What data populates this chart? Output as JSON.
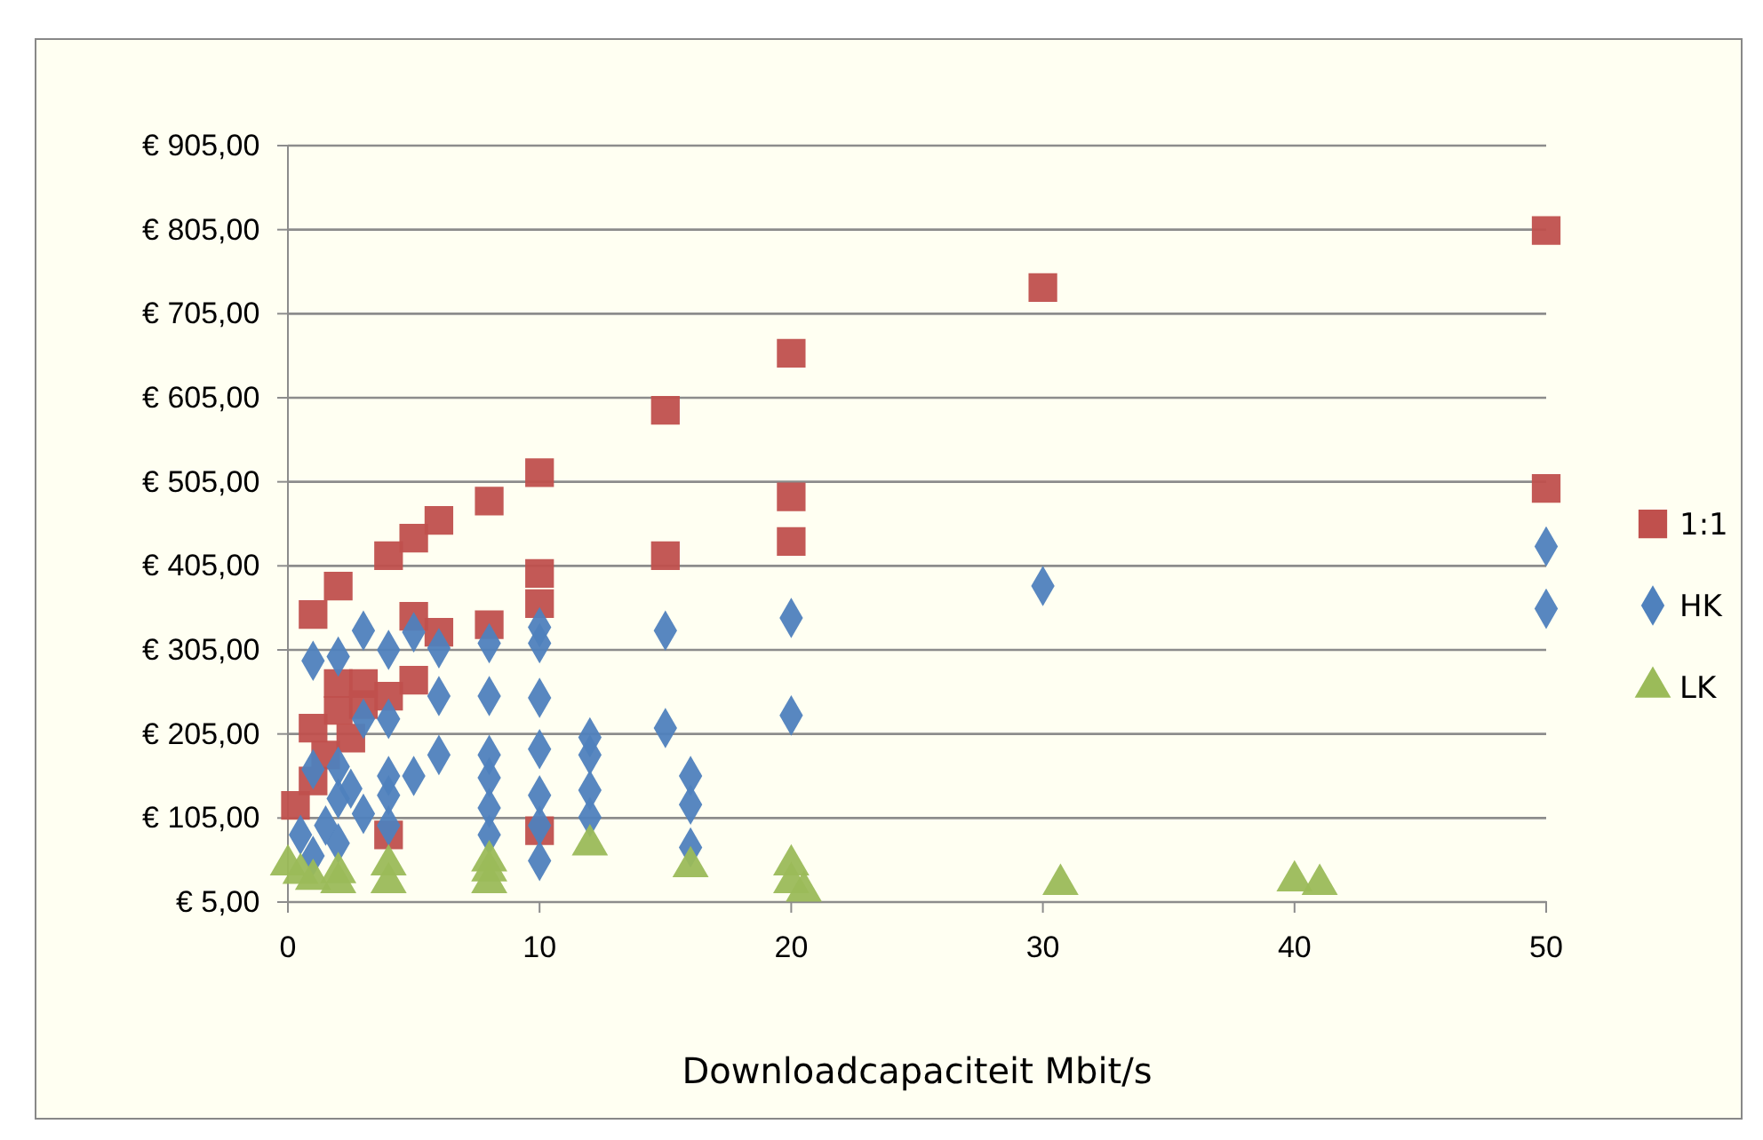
{
  "chart_data": {
    "type": "scatter",
    "xlabel": "Downloadcapaciteit Mbit/s",
    "xlim": [
      0,
      50
    ],
    "xticks": [
      0,
      10,
      20,
      30,
      40,
      50
    ],
    "ylim": [
      5,
      905
    ],
    "yticks": [
      {
        "value": 5,
        "label": "€ 5,00"
      },
      {
        "value": 105,
        "label": "€ 105,00"
      },
      {
        "value": 205,
        "label": "€ 205,00"
      },
      {
        "value": 305,
        "label": "€ 305,00"
      },
      {
        "value": 405,
        "label": "€ 405,00"
      },
      {
        "value": 505,
        "label": "€ 505,00"
      },
      {
        "value": 605,
        "label": "€ 605,00"
      },
      {
        "value": 705,
        "label": "€ 705,00"
      },
      {
        "value": 805,
        "label": "€ 805,00"
      },
      {
        "value": 905,
        "label": "€ 905,00"
      }
    ],
    "grid": "y",
    "legend": "right",
    "series": [
      {
        "name": "1:1",
        "color": "#c0504d",
        "marker": "square",
        "x": [
          50,
          30,
          20,
          15,
          10,
          8,
          6,
          5,
          4,
          2,
          1,
          50,
          20,
          20,
          15,
          10,
          10,
          8,
          6,
          5,
          5,
          4,
          3,
          2,
          2,
          1,
          1,
          10,
          4,
          1.5,
          2.5,
          3,
          0.3
        ],
        "values": [
          804,
          736,
          658,
          590,
          516,
          482,
          459,
          438,
          417,
          381,
          347,
          497,
          487,
          434,
          417,
          396,
          360,
          335,
          326,
          345,
          269,
          250,
          265,
          265,
          233,
          212,
          149,
          90,
          85,
          180,
          200,
          240,
          120
        ]
      },
      {
        "name": "HK",
        "color": "#4f81bd",
        "marker": "diamond",
        "x": [
          50,
          50,
          30,
          20,
          20,
          15,
          15,
          16,
          16,
          16,
          12,
          12,
          12,
          12,
          10,
          10,
          10,
          10,
          10,
          10,
          10,
          8,
          8,
          8,
          8,
          8,
          8,
          6,
          6,
          6,
          5,
          5,
          4,
          4,
          4,
          4,
          4,
          3,
          3,
          2,
          2,
          2,
          1,
          1,
          0.5,
          1.5,
          2,
          3,
          2.5,
          1
        ],
        "values": [
          428,
          354,
          381,
          343,
          227,
          328,
          212,
          155,
          121,
          70,
          201,
          180,
          138,
          106,
          332,
          313,
          248,
          187,
          132,
          96,
          54,
          313,
          250,
          180,
          153,
          117,
          85,
          307,
          250,
          180,
          326,
          155,
          305,
          223,
          155,
          132,
          96,
          328,
          223,
          297,
          166,
          128,
          292,
          163,
          85,
          96,
          75,
          110,
          140,
          60
        ]
      },
      {
        "name": "LK",
        "color": "#9bbb59",
        "marker": "triangle",
        "x": [
          0,
          0.5,
          1,
          2,
          4,
          8,
          8,
          12,
          16,
          20,
          20,
          20.5,
          30.7,
          40,
          41,
          4,
          2,
          8
        ],
        "values": [
          49,
          39,
          32,
          28,
          28,
          28,
          54,
          73,
          47,
          49,
          28,
          18,
          26,
          30,
          26,
          49,
          40,
          42
        ]
      }
    ]
  }
}
